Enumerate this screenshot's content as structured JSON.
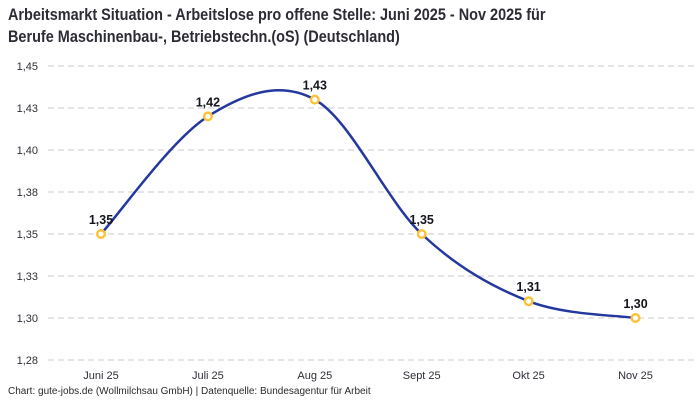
{
  "header": {
    "title_line1": "Arbeitsmarkt Situation - Arbeitslose pro offene Stelle: Juni 2025 - Nov 2025 für",
    "title_line2": "Berufe Maschinenbau-, Betriebstechn.(oS) (Deutschland)"
  },
  "footer": {
    "credit": "Chart: gute-jobs.de (Wollmilchsau GmbH) | Datenquelle: Bundesagentur für Arbeit"
  },
  "chart_data": {
    "type": "line",
    "title": "Arbeitsmarkt Situation - Arbeitslose pro offene Stelle: Juni 2025 - Nov 2025 für Berufe Maschinenbau-, Betriebstechn.(oS) (Deutschland)",
    "categories": [
      "Juni 25",
      "Juli 25",
      "Aug 25",
      "Sept 25",
      "Okt 25",
      "Nov 25"
    ],
    "values": [
      1.35,
      1.42,
      1.43,
      1.35,
      1.31,
      1.3
    ],
    "point_labels": [
      "1,35",
      "1,42",
      "1,43",
      "1,35",
      "1,31",
      "1,30"
    ],
    "xlabel": "",
    "ylabel": "",
    "ylim": [
      1.275,
      1.45
    ],
    "yticks": [
      1.45,
      1.425,
      1.4,
      1.375,
      1.35,
      1.325,
      1.3,
      1.275
    ],
    "ytick_labels": [
      "1,45",
      "1,43",
      "1,40",
      "1,38",
      "1,35",
      "1,33",
      "1,30",
      "1,28"
    ],
    "grid": "horizontal-dashed",
    "legend": "none",
    "smooth": true,
    "colors": {
      "line": "#24389e",
      "marker_stroke": "#fdc131",
      "marker_fill": "#ffffff",
      "grid": "#cbcbcb",
      "tick_text": "#2f2f38",
      "point_label_text": "#15151d"
    }
  }
}
